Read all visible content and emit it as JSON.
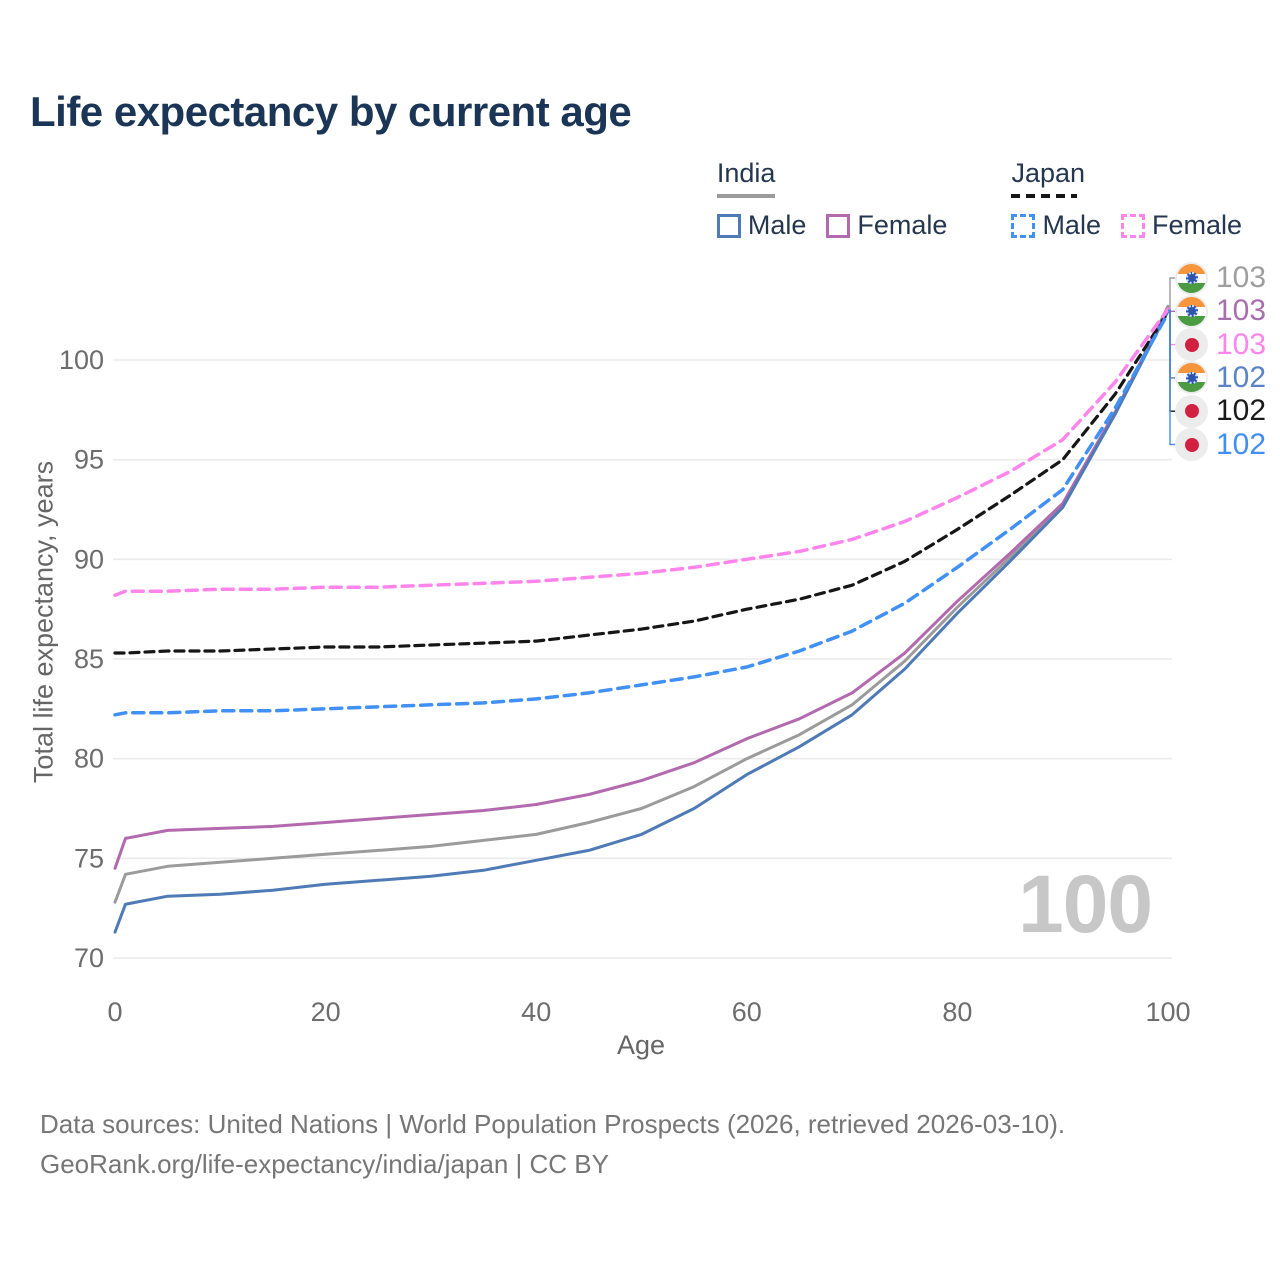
{
  "title": "Life expectancy by current age",
  "legend": {
    "groups": [
      {
        "label": "India",
        "line_style": "solid",
        "line_color": "#9b9b9b",
        "items": [
          {
            "label": "Male",
            "color": "#4e7ab5",
            "dashed": false
          },
          {
            "label": "Female",
            "color": "#b269ae",
            "dashed": false
          }
        ]
      },
      {
        "label": "Japan",
        "line_style": "dashed",
        "line_color": "#161616",
        "items": [
          {
            "label": "Male",
            "color": "#4190f5",
            "dashed": true
          },
          {
            "label": "Female",
            "color": "#ff85ec",
            "dashed": true
          }
        ]
      }
    ]
  },
  "watermark_age": "100",
  "end_labels": [
    {
      "flag": "india",
      "value": "103",
      "text_color": "#9e9e9e",
      "tick_color": "#9b9b9b",
      "series": "India both sexes"
    },
    {
      "flag": "india",
      "value": "103",
      "text_color": "#a76fae",
      "tick_color": "#b269ae",
      "series": "India female"
    },
    {
      "flag": "japan",
      "value": "103",
      "text_color": "#ff85ec",
      "tick_color": "#ff85ec",
      "series": "Japan female"
    },
    {
      "flag": "india",
      "value": "102",
      "text_color": "#5b84c8",
      "tick_color": "#4e7ab5",
      "series": "India male"
    },
    {
      "flag": "japan",
      "value": "102",
      "text_color": "#1a1a1a",
      "tick_color": "#161616",
      "series": "Japan both sexes"
    },
    {
      "flag": "japan",
      "value": "102",
      "text_color": "#418ff4",
      "tick_color": "#4190f5",
      "series": "Japan male"
    }
  ],
  "footer": {
    "line1": "Data sources: United Nations | World Population Prospects (2026, retrieved 2026-03-10).",
    "line2": "GeoRank.org/life-expectancy/india/japan | CC BY"
  },
  "chart_data": {
    "type": "line",
    "title": "Life expectancy by current age",
    "xlabel": "Age",
    "ylabel": "Total life expectancy, years",
    "xlim": [
      0,
      100
    ],
    "ylim": [
      70,
      103.5
    ],
    "xticks": [
      0,
      20,
      40,
      60,
      80,
      100
    ],
    "yticks": [
      70,
      75,
      80,
      85,
      90,
      95,
      100
    ],
    "grid": "horizontal",
    "legend_position": "top-right",
    "x": [
      0,
      1,
      5,
      10,
      15,
      20,
      25,
      30,
      35,
      40,
      45,
      50,
      55,
      60,
      65,
      70,
      75,
      80,
      85,
      90,
      95,
      100
    ],
    "series": [
      {
        "id": "india-total",
        "name": "India both sexes",
        "color": "#9b9b9b",
        "dash": null,
        "width": 3,
        "values": [
          72.8,
          74.2,
          74.6,
          74.8,
          75.0,
          75.2,
          75.4,
          75.6,
          75.9,
          76.2,
          76.8,
          77.5,
          78.6,
          80.0,
          81.2,
          82.7,
          84.9,
          87.6,
          90.1,
          92.7,
          97.3,
          102.7
        ],
        "end_label": "103"
      },
      {
        "id": "india-female",
        "name": "India female",
        "color": "#b269ae",
        "dash": null,
        "width": 3,
        "values": [
          74.5,
          76.0,
          76.4,
          76.5,
          76.6,
          76.8,
          77.0,
          77.2,
          77.4,
          77.7,
          78.2,
          78.9,
          79.8,
          81.0,
          82.0,
          83.3,
          85.3,
          87.9,
          90.3,
          92.8,
          97.4,
          102.6
        ],
        "end_label": "103"
      },
      {
        "id": "india-male",
        "name": "India male",
        "color": "#4e7ab5",
        "dash": null,
        "width": 3,
        "values": [
          71.3,
          72.7,
          73.1,
          73.2,
          73.4,
          73.7,
          73.9,
          74.1,
          74.4,
          74.9,
          75.4,
          76.2,
          77.5,
          79.2,
          80.6,
          82.2,
          84.5,
          87.3,
          89.9,
          92.6,
          97.3,
          102.45
        ],
        "end_label": "102"
      },
      {
        "id": "japan-total",
        "name": "Japan both sexes",
        "color": "#161616",
        "dash": "9 6",
        "width": 3.2,
        "values": [
          85.3,
          85.3,
          85.4,
          85.4,
          85.5,
          85.6,
          85.6,
          85.7,
          85.8,
          85.9,
          86.2,
          86.5,
          86.9,
          87.5,
          88.0,
          88.7,
          89.9,
          91.5,
          93.2,
          95.0,
          98.3,
          102.4
        ],
        "end_label": "102"
      },
      {
        "id": "japan-male",
        "name": "Japan male",
        "color": "#4190f5",
        "dash": "11 7",
        "width": 3.5,
        "values": [
          82.2,
          82.3,
          82.3,
          82.4,
          82.4,
          82.5,
          82.6,
          82.7,
          82.8,
          83.0,
          83.3,
          83.7,
          84.1,
          84.6,
          85.4,
          86.4,
          87.8,
          89.6,
          91.5,
          93.5,
          97.6,
          102.35
        ],
        "end_label": "102"
      },
      {
        "id": "japan-female",
        "name": "Japan female",
        "color": "#ff85ec",
        "dash": "11 7",
        "width": 3.5,
        "values": [
          88.2,
          88.4,
          88.4,
          88.5,
          88.5,
          88.6,
          88.6,
          88.7,
          88.8,
          88.9,
          89.1,
          89.3,
          89.6,
          90.0,
          90.4,
          91.0,
          91.9,
          93.1,
          94.4,
          96.0,
          98.9,
          102.55
        ],
        "end_label": "103"
      }
    ]
  }
}
